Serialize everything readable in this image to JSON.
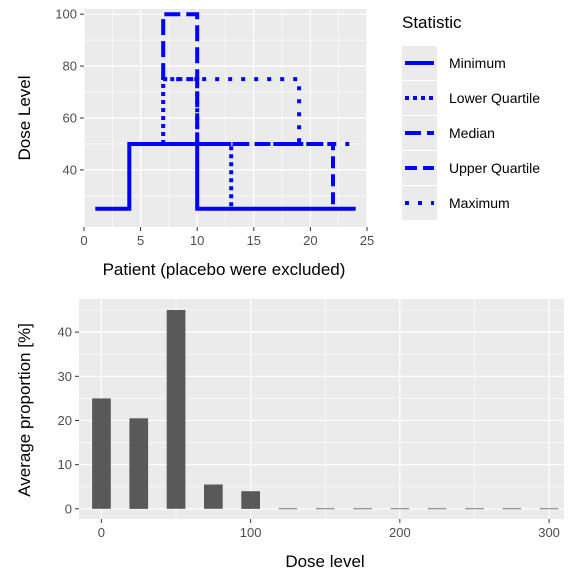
{
  "chart_data": [
    {
      "type": "line",
      "title": "",
      "xlabel": "Patient (placebo were excluded)",
      "ylabel": "Dose Level",
      "xlim": [
        0,
        25
      ],
      "ylim": [
        18,
        102
      ],
      "xticks": [
        0,
        5,
        10,
        15,
        20,
        25
      ],
      "yticks": [
        40,
        60,
        80,
        100
      ],
      "grid": true,
      "line_shape": "step",
      "color": "#0000ff",
      "legend": {
        "title": "Statistic",
        "placement": "right",
        "entries": [
          "Minimum",
          "Lower Quartile",
          "Median",
          "Upper Quartile",
          "Maximum"
        ]
      },
      "series": [
        {
          "name": "Minimum",
          "dash": "solid",
          "points": [
            [
              1,
              25
            ],
            [
              4,
              25
            ],
            [
              4,
              50
            ],
            [
              10,
              50
            ],
            [
              10,
              25
            ],
            [
              24,
              25
            ]
          ]
        },
        {
          "name": "Lower Quartile",
          "dash": "dotted-dense",
          "points": [
            [
              7,
              50
            ],
            [
              7,
              75
            ],
            [
              10,
              75
            ],
            [
              10,
              50
            ],
            [
              13,
              50
            ],
            [
              13,
              25
            ]
          ]
        },
        {
          "name": "Median",
          "dash": "long-dash",
          "points": [
            [
              7,
              75
            ],
            [
              7,
              100
            ],
            [
              10,
              100
            ],
            [
              10,
              50
            ],
            [
              19,
              50
            ]
          ]
        },
        {
          "name": "Upper Quartile",
          "dash": "dash",
          "points": [
            [
              4,
              50
            ],
            [
              22,
              50
            ],
            [
              22,
              25
            ]
          ]
        },
        {
          "name": "Maximum",
          "dash": "dotted",
          "points": [
            [
              7,
              75
            ],
            [
              19,
              75
            ],
            [
              19,
              50
            ],
            [
              24,
              50
            ]
          ]
        }
      ]
    },
    {
      "type": "bar",
      "title": "",
      "xlabel": "Dose level",
      "ylabel": "Average proportion [%]",
      "xlim": [
        -15,
        310
      ],
      "ylim": [
        -2.3,
        47.5
      ],
      "xticks": [
        0,
        100,
        200,
        300
      ],
      "yticks": [
        0,
        10,
        20,
        30,
        40
      ],
      "grid": true,
      "bar_width": 12.5,
      "color": "#595959",
      "x": [
        0,
        25,
        50,
        75,
        100,
        125,
        150,
        175,
        200,
        225,
        250,
        275,
        300
      ],
      "values": [
        25,
        20.5,
        45,
        5.5,
        4,
        0,
        0,
        0,
        0,
        0,
        0,
        0,
        0
      ]
    }
  ]
}
